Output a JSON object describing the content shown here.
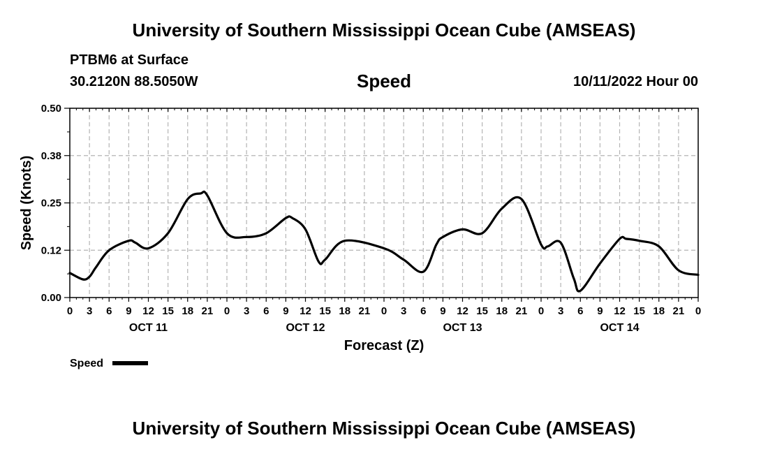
{
  "page": {
    "main_title": "University of Southern Mississippi Ocean Cube (AMSEAS)",
    "footer_title": "University of Southern Mississippi Ocean Cube (AMSEAS)",
    "station": "PTBM6 at Surface",
    "coords": "30.2120N  88.5050W",
    "timestamp": "10/11/2022 Hour 00"
  },
  "chart_data": {
    "type": "line",
    "title": "Speed",
    "xlabel": "Forecast (Z)",
    "ylabel": "Speed (Knots)",
    "xlim": [
      0,
      96
    ],
    "ylim": [
      0,
      0.5
    ],
    "yticks": [
      0,
      0.125,
      0.25,
      0.375,
      0.5
    ],
    "ytick_labels": [
      "0.00",
      "0.12",
      "0.25",
      "0.38",
      "0.50"
    ],
    "xticks": [
      0,
      3,
      6,
      9,
      12,
      15,
      18,
      21,
      24,
      27,
      30,
      33,
      36,
      39,
      42,
      45,
      48,
      51,
      54,
      57,
      60,
      63,
      66,
      69,
      72,
      75,
      78,
      81,
      84,
      87,
      90,
      93,
      96
    ],
    "xtick_labels": [
      "0",
      "3",
      "6",
      "9",
      "12",
      "15",
      "18",
      "21",
      "0",
      "3",
      "6",
      "9",
      "12",
      "15",
      "18",
      "21",
      "0",
      "3",
      "6",
      "9",
      "12",
      "15",
      "18",
      "21",
      "0",
      "3",
      "6",
      "9",
      "12",
      "15",
      "18",
      "21",
      "0"
    ],
    "day_labels": [
      {
        "hour": 12,
        "label": "OCT 11"
      },
      {
        "hour": 36,
        "label": "OCT 12"
      },
      {
        "hour": 60,
        "label": "OCT 13"
      },
      {
        "hour": 84,
        "label": "OCT 14"
      }
    ],
    "grid": true,
    "legend": "bottom-left",
    "color_line": "#000000",
    "color_grid": "#b4b4b4",
    "series": [
      {
        "name": "Speed",
        "x": [
          0,
          2,
          3,
          4,
          6,
          9,
          10,
          12,
          15,
          18,
          20,
          21,
          24,
          27,
          30,
          33,
          34,
          36,
          38,
          39,
          42,
          48,
          51,
          54,
          56,
          57,
          60,
          63,
          66,
          69,
          72,
          73,
          75,
          77,
          78,
          81,
          84,
          85,
          87,
          90,
          93,
          96
        ],
        "values": [
          0.065,
          0.048,
          0.055,
          0.08,
          0.125,
          0.15,
          0.145,
          0.13,
          0.17,
          0.26,
          0.275,
          0.27,
          0.17,
          0.16,
          0.17,
          0.21,
          0.21,
          0.18,
          0.095,
          0.1,
          0.15,
          0.13,
          0.1,
          0.068,
          0.14,
          0.16,
          0.18,
          0.17,
          0.235,
          0.26,
          0.14,
          0.135,
          0.145,
          0.05,
          0.018,
          0.09,
          0.155,
          0.155,
          0.15,
          0.135,
          0.072,
          0.06
        ]
      }
    ]
  }
}
